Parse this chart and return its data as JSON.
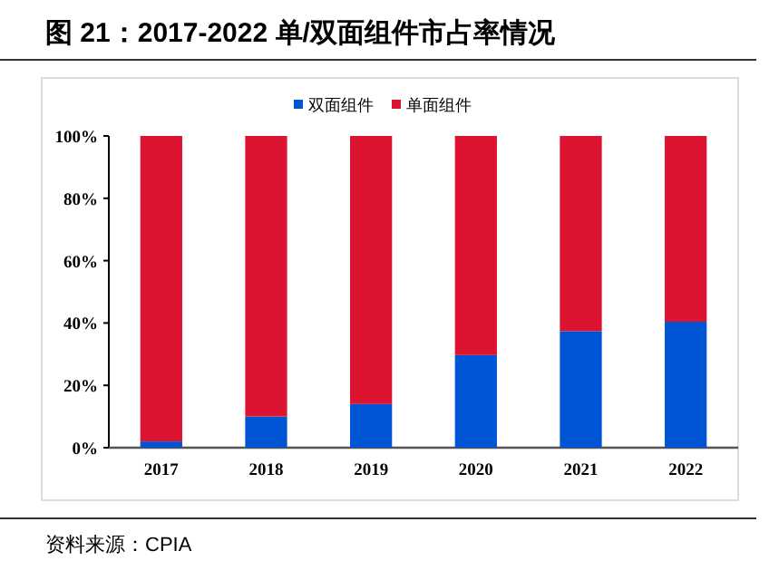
{
  "chart_data": {
    "type": "bar",
    "title": "图 21：2017-2022 单/双面组件市占率情况",
    "stacked": true,
    "legend": "top",
    "categories": [
      "2017",
      "2018",
      "2019",
      "2020",
      "2021",
      "2022"
    ],
    "series": [
      {
        "name": "双面组件",
        "color": "#0055d4",
        "values": [
          2,
          10,
          14,
          29.7,
          37.4,
          40.4
        ]
      },
      {
        "name": "单面组件",
        "color": "#dc1432",
        "values": [
          98,
          90,
          86,
          70.3,
          62.6,
          59.6
        ]
      }
    ],
    "ylim": [
      0,
      100
    ],
    "yticks": [
      {
        "value": 0,
        "label": "0%"
      },
      {
        "value": 20,
        "label": "20%"
      },
      {
        "value": 40,
        "label": "40%"
      },
      {
        "value": 60,
        "label": "60%"
      },
      {
        "value": 80,
        "label": "80%"
      },
      {
        "value": 100,
        "label": "100%"
      }
    ],
    "annotations": [
      "资料来源：CPIA"
    ]
  }
}
